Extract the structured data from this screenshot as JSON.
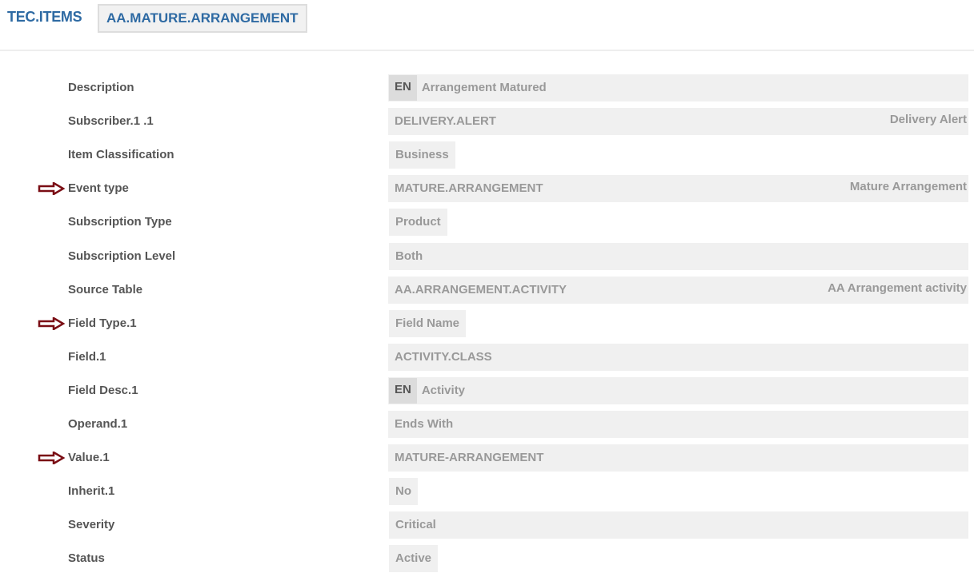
{
  "header": {
    "app": "TEC.ITEMS",
    "record": "AA.MATURE.ARRANGEMENT"
  },
  "colors": {
    "accent": "#2e6aa3",
    "arrow": "#7a0d14"
  },
  "rows": [
    {
      "label": "Description",
      "type": "lang",
      "lang": "EN",
      "value": "Arrangement Matured",
      "arrow": false
    },
    {
      "label": "Subscriber.1 .1",
      "type": "full",
      "value": "DELIVERY.ALERT",
      "desc": "Delivery Alert",
      "arrow": false
    },
    {
      "label": "Item Classification",
      "type": "chip",
      "value": "Business",
      "arrow": false
    },
    {
      "label": "Event type",
      "type": "full",
      "value": "MATURE.ARRANGEMENT",
      "desc": "Mature Arrangement",
      "arrow": true
    },
    {
      "label": "Subscription Type",
      "type": "chip",
      "value": "Product",
      "arrow": false
    },
    {
      "label": "Subscription Level",
      "type": "fullchip",
      "value": "Both",
      "arrow": false
    },
    {
      "label": "Source Table",
      "type": "full",
      "value": "AA.ARRANGEMENT.ACTIVITY",
      "desc": "AA Arrangement activity",
      "arrow": false
    },
    {
      "label": "Field Type.1",
      "type": "chip",
      "value": "Field Name",
      "arrow": true
    },
    {
      "label": "Field.1",
      "type": "full",
      "value": "ACTIVITY.CLASS",
      "desc": "",
      "arrow": false
    },
    {
      "label": "Field Desc.1",
      "type": "lang",
      "lang": "EN",
      "value": "Activity",
      "arrow": false
    },
    {
      "label": "Operand.1",
      "type": "full",
      "value": "Ends With",
      "desc": "",
      "arrow": false
    },
    {
      "label": "Value.1",
      "type": "full",
      "value": "MATURE-ARRANGEMENT",
      "desc": "",
      "arrow": true
    },
    {
      "label": "Inherit.1",
      "type": "chip",
      "value": "No",
      "arrow": false
    },
    {
      "label": "Severity",
      "type": "fullchip",
      "value": "Critical",
      "arrow": false
    },
    {
      "label": "Status",
      "type": "chip",
      "value": "Active",
      "arrow": false
    }
  ]
}
